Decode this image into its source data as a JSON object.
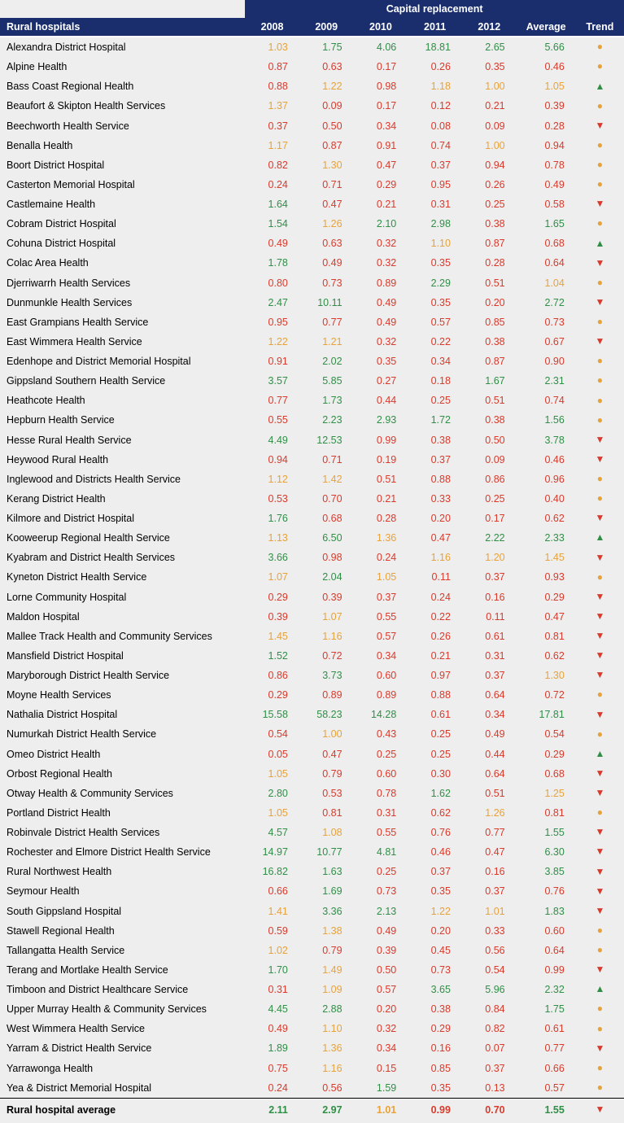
{
  "colors": {
    "header_bg": "#1a2e6e",
    "header_fg": "#ffffff",
    "body_bg": "#eeeeee",
    "red": "#d93a2b",
    "orange": "#e8a23a",
    "green": "#2f8f46",
    "text": "#000000"
  },
  "typography": {
    "family": "Arial",
    "body_size_pt": 9.5,
    "header_weight": "bold"
  },
  "thresholds": {
    "green_min": 1.5,
    "orange_min": 1.0
  },
  "trend_glyphs": {
    "up": "▲",
    "flat": "●",
    "down": "▼"
  },
  "header": {
    "group_title": "Capital replacement",
    "row_label": "Rural hospitals",
    "years": [
      "2008",
      "2009",
      "2010",
      "2011",
      "2012"
    ],
    "average": "Average",
    "trend": "Trend"
  },
  "rows": [
    {
      "name": "Alexandra District Hospital",
      "y": [
        1.03,
        1.75,
        4.06,
        18.81,
        2.65
      ],
      "avg": 5.66,
      "trend": "flat"
    },
    {
      "name": "Alpine Health",
      "y": [
        0.87,
        0.63,
        0.17,
        0.26,
        0.35
      ],
      "avg": 0.46,
      "trend": "flat"
    },
    {
      "name": "Bass Coast Regional Health",
      "y": [
        0.88,
        1.22,
        0.98,
        1.18,
        1.0
      ],
      "avg": 1.05,
      "trend": "up"
    },
    {
      "name": "Beaufort & Skipton Health Services",
      "y": [
        1.37,
        0.09,
        0.17,
        0.12,
        0.21
      ],
      "avg": 0.39,
      "trend": "flat"
    },
    {
      "name": "Beechworth Health Service",
      "y": [
        0.37,
        0.5,
        0.34,
        0.08,
        0.09
      ],
      "avg": 0.28,
      "trend": "down"
    },
    {
      "name": "Benalla Health",
      "y": [
        1.17,
        0.87,
        0.91,
        0.74,
        1.0
      ],
      "avg": 0.94,
      "trend": "flat"
    },
    {
      "name": "Boort District Hospital",
      "y": [
        0.82,
        1.3,
        0.47,
        0.37,
        0.94
      ],
      "avg": 0.78,
      "trend": "flat"
    },
    {
      "name": "Casterton Memorial Hospital",
      "y": [
        0.24,
        0.71,
        0.29,
        0.95,
        0.26
      ],
      "avg": 0.49,
      "trend": "flat"
    },
    {
      "name": "Castlemaine Health",
      "y": [
        1.64,
        0.47,
        0.21,
        0.31,
        0.25
      ],
      "avg": 0.58,
      "trend": "down"
    },
    {
      "name": "Cobram District Hospital",
      "y": [
        1.54,
        1.26,
        2.1,
        2.98,
        0.38
      ],
      "avg": 1.65,
      "trend": "flat"
    },
    {
      "name": "Cohuna District Hospital",
      "y": [
        0.49,
        0.63,
        0.32,
        1.1,
        0.87
      ],
      "avg": 0.68,
      "trend": "up"
    },
    {
      "name": "Colac Area Health",
      "y": [
        1.78,
        0.49,
        0.32,
        0.35,
        0.28
      ],
      "avg": 0.64,
      "trend": "down"
    },
    {
      "name": "Djerriwarrh Health Services",
      "y": [
        0.8,
        0.73,
        0.89,
        2.29,
        0.51
      ],
      "avg": 1.04,
      "trend": "flat"
    },
    {
      "name": "Dunmunkle Health Services",
      "y": [
        2.47,
        10.11,
        0.49,
        0.35,
        0.2
      ],
      "avg": 2.72,
      "trend": "down"
    },
    {
      "name": "East Grampians Health Service",
      "y": [
        0.95,
        0.77,
        0.49,
        0.57,
        0.85
      ],
      "avg": 0.73,
      "trend": "flat"
    },
    {
      "name": "East Wimmera Health Service",
      "y": [
        1.22,
        1.21,
        0.32,
        0.22,
        0.38
      ],
      "avg": 0.67,
      "trend": "down"
    },
    {
      "name": "Edenhope and District Memorial Hospital",
      "y": [
        0.91,
        2.02,
        0.35,
        0.34,
        0.87
      ],
      "avg": 0.9,
      "trend": "flat"
    },
    {
      "name": "Gippsland Southern Health Service",
      "y": [
        3.57,
        5.85,
        0.27,
        0.18,
        1.67
      ],
      "avg": 2.31,
      "trend": "flat"
    },
    {
      "name": "Heathcote Health",
      "y": [
        0.77,
        1.73,
        0.44,
        0.25,
        0.51
      ],
      "avg": 0.74,
      "trend": "flat"
    },
    {
      "name": "Hepburn Health Service",
      "y": [
        0.55,
        2.23,
        2.93,
        1.72,
        0.38
      ],
      "avg": 1.56,
      "trend": "flat"
    },
    {
      "name": "Hesse Rural Health Service",
      "y": [
        4.49,
        12.53,
        0.99,
        0.38,
        0.5
      ],
      "avg": 3.78,
      "trend": "down"
    },
    {
      "name": "Heywood Rural Health",
      "y": [
        0.94,
        0.71,
        0.19,
        0.37,
        0.09
      ],
      "avg": 0.46,
      "trend": "down"
    },
    {
      "name": "Inglewood and Districts Health Service",
      "y": [
        1.12,
        1.42,
        0.51,
        0.88,
        0.86
      ],
      "avg": 0.96,
      "trend": "flat"
    },
    {
      "name": "Kerang District Health",
      "y": [
        0.53,
        0.7,
        0.21,
        0.33,
        0.25
      ],
      "avg": 0.4,
      "trend": "flat"
    },
    {
      "name": "Kilmore and District Hospital",
      "y": [
        1.76,
        0.68,
        0.28,
        0.2,
        0.17
      ],
      "avg": 0.62,
      "trend": "down"
    },
    {
      "name": "Kooweerup Regional Health Service",
      "y": [
        1.13,
        6.5,
        1.36,
        0.47,
        2.22
      ],
      "avg": 2.33,
      "trend": "up"
    },
    {
      "name": "Kyabram and District Health Services",
      "y": [
        3.66,
        0.98,
        0.24,
        1.16,
        1.2
      ],
      "avg": 1.45,
      "trend": "down"
    },
    {
      "name": "Kyneton District Health Service",
      "y": [
        1.07,
        2.04,
        1.05,
        0.11,
        0.37
      ],
      "avg": 0.93,
      "trend": "flat"
    },
    {
      "name": "Lorne Community Hospital",
      "y": [
        0.29,
        0.39,
        0.37,
        0.24,
        0.16
      ],
      "avg": 0.29,
      "trend": "down"
    },
    {
      "name": "Maldon Hospital",
      "y": [
        0.39,
        1.07,
        0.55,
        0.22,
        0.11
      ],
      "avg": 0.47,
      "trend": "down"
    },
    {
      "name": "Mallee Track Health and Community Services",
      "y": [
        1.45,
        1.16,
        0.57,
        0.26,
        0.61
      ],
      "avg": 0.81,
      "trend": "down"
    },
    {
      "name": "Mansfield District Hospital",
      "y": [
        1.52,
        0.72,
        0.34,
        0.21,
        0.31
      ],
      "avg": 0.62,
      "trend": "down"
    },
    {
      "name": "Maryborough District Health Service",
      "y": [
        0.86,
        3.73,
        0.6,
        0.97,
        0.37
      ],
      "avg": 1.3,
      "trend": "down"
    },
    {
      "name": "Moyne Health Services",
      "y": [
        0.29,
        0.89,
        0.89,
        0.88,
        0.64
      ],
      "avg": 0.72,
      "trend": "flat"
    },
    {
      "name": "Nathalia District Hospital",
      "y": [
        15.58,
        58.23,
        14.28,
        0.61,
        0.34
      ],
      "avg": 17.81,
      "trend": "down"
    },
    {
      "name": "Numurkah District Health Service",
      "y": [
        0.54,
        1.0,
        0.43,
        0.25,
        0.49
      ],
      "avg": 0.54,
      "trend": "flat"
    },
    {
      "name": "Omeo District Health",
      "y": [
        0.05,
        0.47,
        0.25,
        0.25,
        0.44
      ],
      "avg": 0.29,
      "trend": "up"
    },
    {
      "name": "Orbost Regional Health",
      "y": [
        1.05,
        0.79,
        0.6,
        0.3,
        0.64
      ],
      "avg": 0.68,
      "trend": "down"
    },
    {
      "name": "Otway Health & Community Services",
      "y": [
        2.8,
        0.53,
        0.78,
        1.62,
        0.51
      ],
      "avg": 1.25,
      "trend": "down"
    },
    {
      "name": "Portland District Health",
      "y": [
        1.05,
        0.81,
        0.31,
        0.62,
        1.26
      ],
      "avg": 0.81,
      "trend": "flat"
    },
    {
      "name": "Robinvale District Health Services",
      "y": [
        4.57,
        1.08,
        0.55,
        0.76,
        0.77
      ],
      "avg": 1.55,
      "trend": "down"
    },
    {
      "name": "Rochester and Elmore District Health Service",
      "y": [
        14.97,
        10.77,
        4.81,
        0.46,
        0.47
      ],
      "avg": 6.3,
      "trend": "down"
    },
    {
      "name": "Rural Northwest Health",
      "y": [
        16.82,
        1.63,
        0.25,
        0.37,
        0.16
      ],
      "avg": 3.85,
      "trend": "down"
    },
    {
      "name": "Seymour Health",
      "y": [
        0.66,
        1.69,
        0.73,
        0.35,
        0.37
      ],
      "avg": 0.76,
      "trend": "down"
    },
    {
      "name": "South Gippsland Hospital",
      "y": [
        1.41,
        3.36,
        2.13,
        1.22,
        1.01
      ],
      "avg": 1.83,
      "trend": "down"
    },
    {
      "name": "Stawell Regional Health",
      "y": [
        0.59,
        1.38,
        0.49,
        0.2,
        0.33
      ],
      "avg": 0.6,
      "trend": "flat"
    },
    {
      "name": "Tallangatta Health Service",
      "y": [
        1.02,
        0.79,
        0.39,
        0.45,
        0.56
      ],
      "avg": 0.64,
      "trend": "flat"
    },
    {
      "name": "Terang and Mortlake Health Service",
      "y": [
        1.7,
        1.49,
        0.5,
        0.73,
        0.54
      ],
      "avg": 0.99,
      "trend": "down"
    },
    {
      "name": "Timboon and District Healthcare Service",
      "y": [
        0.31,
        1.09,
        0.57,
        3.65,
        5.96
      ],
      "avg": 2.32,
      "trend": "up"
    },
    {
      "name": "Upper Murray Health & Community Services",
      "y": [
        4.45,
        2.88,
        0.2,
        0.38,
        0.84
      ],
      "avg": 1.75,
      "trend": "flat"
    },
    {
      "name": "West Wimmera Health Service",
      "y": [
        0.49,
        1.1,
        0.32,
        0.29,
        0.82
      ],
      "avg": 0.61,
      "trend": "flat"
    },
    {
      "name": "Yarram & District Health Service",
      "y": [
        1.89,
        1.36,
        0.34,
        0.16,
        0.07
      ],
      "avg": 0.77,
      "trend": "down"
    },
    {
      "name": "Yarrawonga Health",
      "y": [
        0.75,
        1.16,
        0.15,
        0.85,
        0.37
      ],
      "avg": 0.66,
      "trend": "flat"
    },
    {
      "name": "Yea & District Memorial Hospital",
      "y": [
        0.24,
        0.56,
        1.59,
        0.35,
        0.13
      ],
      "avg": 0.57,
      "trend": "flat"
    }
  ],
  "average_row": {
    "name": "Rural hospital average",
    "y": [
      2.11,
      2.97,
      1.01,
      0.99,
      0.7
    ],
    "avg": 1.55,
    "trend": "down"
  }
}
